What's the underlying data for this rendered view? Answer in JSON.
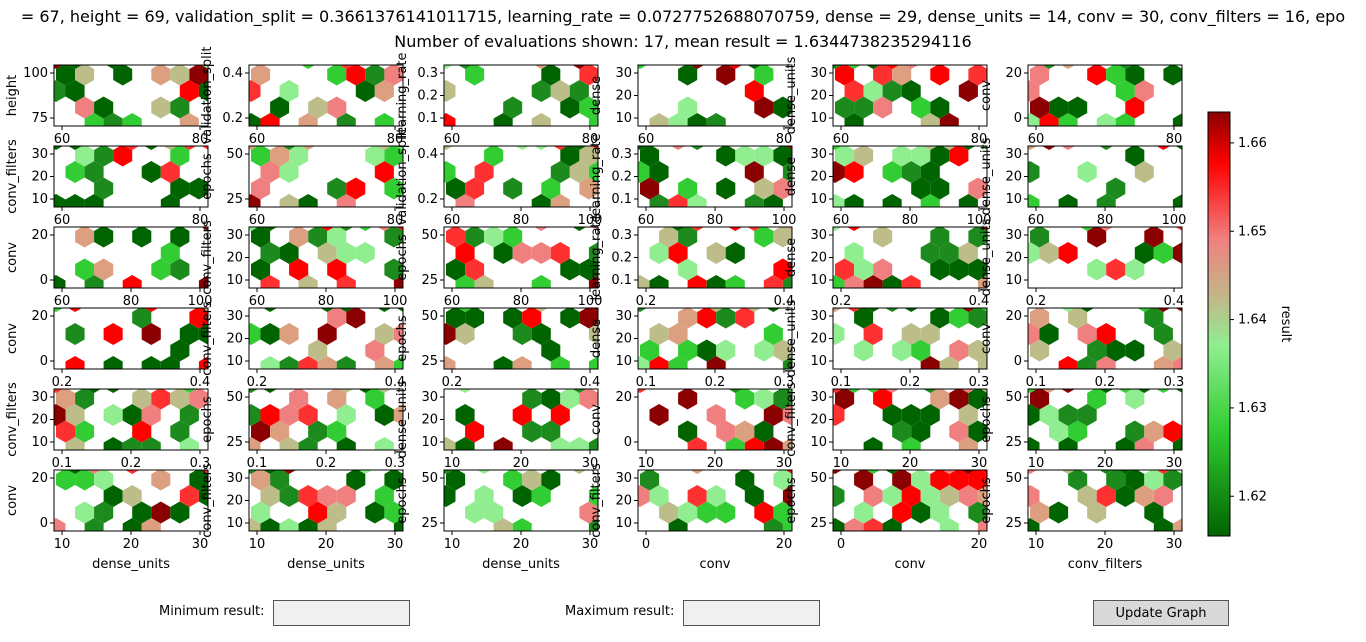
{
  "figure": {
    "title_line1": "= 67, height = 69, validation_split = 0.3661376141011715, learning_rate = 0.0727752688070759, dense = 29, dense_units = 14, conv = 30, conv_filters = 16, epo",
    "title_line2": "Number of evaluations shown: 17, mean result = 1.6344738235294116"
  },
  "colorbar": {
    "label": "result",
    "range": [
      1.6155,
      1.6635
    ],
    "ticks": [
      "1.62",
      "1.63",
      "1.64",
      "1.65",
      "1.66"
    ],
    "tick_values": [
      1.62,
      1.63,
      1.64,
      1.65,
      1.66
    ],
    "colors": [
      "#006400",
      "#32cd32",
      "#90ee90",
      "#bdbd8a",
      "#f08080",
      "#ff0000",
      "#8b0000"
    ]
  },
  "controls": {
    "min_label": "Minimum result:",
    "min_value": "",
    "max_label": "Maximum result:",
    "max_value": "",
    "update_label": "Update Graph"
  },
  "chart_data": {
    "type": "heatmap",
    "subtype": "hexbin pairwise grid",
    "rows": [
      {
        "ylabel": "height",
        "yticks": [
          "75",
          "100"
        ],
        "panels": [
          {
            "ylabel": "height",
            "xticks": [
              "60",
              "80"
            ],
            "xlabel": "",
            "cells": [
              [
                0,
                1
              ],
              [
                0,
                3
              ],
              [
                1,
                0
              ],
              [
                1,
                2
              ],
              [
                2,
                1
              ],
              [
                2,
                3
              ],
              [
                3,
                2
              ],
              [
                3,
                0
              ],
              [
                4,
                1
              ],
              [
                4,
                3
              ],
              [
                5,
                2
              ],
              [
                6,
                1
              ],
              [
                6,
                3
              ],
              [
                7,
                2
              ],
              [
                8,
                1
              ],
              [
                8,
                3
              ],
              [
                9,
                0
              ]
            ],
            "vals": [
              0.05,
              0.3,
              0.7,
              0.1,
              0.6,
              0.2,
              0.2,
              0.15,
              0.1,
              0.4,
              0.55,
              0.0,
              0.2,
              0.3,
              0.5,
              0.0,
              0.9
            ]
          },
          {
            "ylabel": "validation_split",
            "xticks": [
              "60",
              "80"
            ],
            "yticks": [
              "0.2",
              "0.4"
            ]
          },
          {
            "ylabel": "learning_rate",
            "xticks": [
              "60",
              "80"
            ],
            "yticks": [
              "0.1",
              "0.2",
              "0.3"
            ]
          },
          {
            "ylabel": "dense",
            "xticks": [
              "60",
              "80"
            ],
            "yticks": [
              "10",
              "20",
              "30"
            ]
          },
          {
            "ylabel": "dense_units",
            "xticks": [
              "60",
              "80"
            ],
            "yticks": [
              "10",
              "20",
              "30"
            ]
          },
          {
            "ylabel": "conv",
            "xticks": [
              "60",
              "80"
            ],
            "yticks": [
              "0",
              "20"
            ]
          }
        ]
      },
      {
        "ylabel": "conv_filters",
        "yticks": [
          "10",
          "20",
          "30"
        ],
        "panels": [
          {
            "ylabel": "conv_filters",
            "xticks": [
              "60",
              "80"
            ]
          },
          {
            "ylabel": "epochs",
            "xticks": [
              "60",
              "80"
            ],
            "yticks": [
              "25",
              "50"
            ]
          },
          {
            "ylabel": "validation_split",
            "xticks": [
              "60",
              "80",
              "100"
            ],
            "yticks": [
              "0.2",
              "0.4"
            ]
          },
          {
            "ylabel": "learning_rate",
            "xticks": [
              "60",
              "80",
              "100"
            ],
            "yticks": [
              "0.1",
              "0.2",
              "0.3"
            ]
          },
          {
            "ylabel": "dense",
            "xticks": [
              "60",
              "80",
              "100"
            ],
            "yticks": [
              "10",
              "20",
              "30"
            ]
          },
          {
            "ylabel": "dense_units",
            "xticks": [
              "60",
              "80",
              "100"
            ],
            "yticks": [
              "10",
              "20",
              "30"
            ]
          }
        ]
      },
      {
        "ylabel": "conv",
        "panels": [
          {
            "ylabel": "conv",
            "xticks": [
              "60",
              "80",
              "100"
            ],
            "yticks": [
              "0",
              "20"
            ]
          },
          {
            "ylabel": "conv_filters",
            "xticks": [
              "60",
              "80",
              "100"
            ],
            "yticks": [
              "10",
              "20",
              "30"
            ]
          },
          {
            "ylabel": "epochs",
            "xticks": [
              "60",
              "80",
              "100"
            ],
            "yticks": [
              "25",
              "50"
            ]
          },
          {
            "ylabel": "learning_rate",
            "xticks": [
              "0.2",
              "0.4"
            ],
            "yticks": [
              "0.1",
              "0.2",
              "0.3"
            ]
          },
          {
            "ylabel": "dense",
            "xticks": [
              "0.2",
              "0.4"
            ],
            "yticks": [
              "10",
              "20",
              "30"
            ]
          },
          {
            "ylabel": "dense_units",
            "xticks": [
              "0.2",
              "0.4"
            ],
            "yticks": [
              "10",
              "20",
              "30"
            ]
          }
        ]
      },
      {
        "ylabel": "conv",
        "panels": [
          {
            "ylabel": "conv",
            "xticks": [
              "0.2",
              "0.4"
            ],
            "yticks": [
              "0",
              "20"
            ]
          },
          {
            "ylabel": "conv_filters",
            "xticks": [
              "0.2",
              "0.4"
            ],
            "yticks": [
              "10",
              "20",
              "30"
            ]
          },
          {
            "ylabel": "epochs",
            "xticks": [
              "0.2",
              "0.4"
            ],
            "yticks": [
              "25",
              "50"
            ]
          },
          {
            "ylabel": "dense",
            "xticks": [
              "0.1",
              "0.2",
              "0.3"
            ],
            "yticks": [
              "10",
              "20",
              "30"
            ]
          },
          {
            "ylabel": "dense_units",
            "xticks": [
              "0.1",
              "0.2",
              "0.3"
            ],
            "yticks": [
              "10",
              "20",
              "30"
            ]
          },
          {
            "ylabel": "conv",
            "xticks": [
              "0.1",
              "0.2",
              "0.3"
            ],
            "yticks": [
              "0",
              "20"
            ]
          }
        ]
      },
      {
        "ylabel": "conv_filters",
        "panels": [
          {
            "ylabel": "conv_filters",
            "xticks": [
              "0.1",
              "0.2",
              "0.3"
            ],
            "yticks": [
              "10",
              "20",
              "30"
            ]
          },
          {
            "ylabel": "epochs",
            "xticks": [
              "0.1",
              "0.2",
              "0.3"
            ],
            "yticks": [
              "25",
              "50"
            ]
          },
          {
            "ylabel": "dense_units",
            "xticks": [
              "10",
              "20",
              "30"
            ],
            "yticks": [
              "10",
              "20",
              "30"
            ]
          },
          {
            "ylabel": "conv",
            "xticks": [
              "10",
              "20",
              "30"
            ],
            "yticks": [
              "0",
              "20"
            ]
          },
          {
            "ylabel": "conv_filters",
            "xticks": [
              "10",
              "20",
              "30"
            ],
            "yticks": [
              "10",
              "20",
              "30"
            ]
          },
          {
            "ylabel": "epochs",
            "xticks": [
              "10",
              "20",
              "30"
            ],
            "yticks": [
              "25",
              "50"
            ]
          }
        ]
      },
      {
        "ylabel": "conv",
        "panels": [
          {
            "ylabel": "conv",
            "xlabel": "dense_units",
            "xticks": [
              "10",
              "20",
              "30"
            ],
            "yticks": [
              "0",
              "20"
            ]
          },
          {
            "ylabel": "conv_filters",
            "xlabel": "dense_units",
            "xticks": [
              "10",
              "20",
              "30"
            ],
            "yticks": [
              "10",
              "20",
              "30"
            ]
          },
          {
            "ylabel": "epochs",
            "xlabel": "dense_units",
            "xticks": [
              "10",
              "20",
              "30"
            ],
            "yticks": [
              "25",
              "50"
            ]
          },
          {
            "ylabel": "conv_filters",
            "xlabel": "conv",
            "xticks": [
              "0",
              "20"
            ],
            "yticks": [
              "10",
              "20",
              "30"
            ]
          },
          {
            "ylabel": "epochs",
            "xlabel": "conv",
            "xticks": [
              "0",
              "20"
            ],
            "yticks": [
              "25",
              "50"
            ]
          },
          {
            "ylabel": "epochs",
            "xlabel": "conv_filters",
            "xticks": [
              "10",
              "20",
              "30"
            ],
            "yticks": [
              "25",
              "50"
            ]
          }
        ]
      }
    ]
  }
}
